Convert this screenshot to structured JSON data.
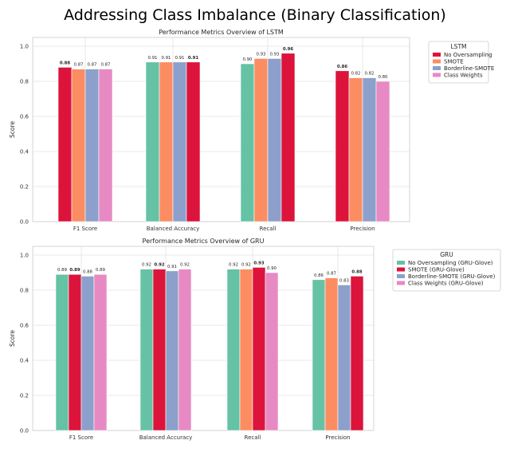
{
  "figure_title": "Addressing Class Imbalance (Binary Classification)",
  "chart_data": [
    {
      "type": "bar",
      "title": "Performance Metrics Overview of LSTM",
      "xlabel": "",
      "ylabel": "Score",
      "ylim": [
        0,
        1.05
      ],
      "yticks": [
        "0.0",
        "0.2",
        "0.4",
        "0.6",
        "0.8",
        "1.0"
      ],
      "grid": true,
      "legend_title": "LSTM",
      "legend_position": "outside-top-right",
      "categories": [
        "F1 Score",
        "Balanced Accuracy",
        "Recall",
        "Precision"
      ],
      "series": [
        {
          "name": "No Oversampling",
          "color": "#dc143c",
          "values": [
            0.88,
            0.91,
            0.9,
            0.86
          ],
          "labels": [
            "0.88",
            "0.91",
            "0.90",
            "0.86"
          ]
        },
        {
          "name": "SMOTE",
          "color": "#fc8d62",
          "values": [
            0.87,
            0.91,
            0.93,
            0.82
          ],
          "labels": [
            "0.87",
            "0.91",
            "0.93",
            "0.82"
          ]
        },
        {
          "name": "Borderline-SMOTE",
          "color": "#8da0cb",
          "values": [
            0.87,
            0.91,
            0.93,
            0.82
          ],
          "labels": [
            "0.87",
            "0.91",
            "0.93",
            "0.82"
          ]
        },
        {
          "name": "Class Weights",
          "color": "#e78ac3",
          "values": [
            0.87,
            0.91,
            0.96,
            0.8
          ],
          "labels": [
            "0.87",
            "0.91",
            "0.96",
            "0.80"
          ]
        }
      ],
      "bar_colors": [
        [
          "#dc143c",
          "#fc8d62",
          "#8da0cb",
          "#e78ac3"
        ],
        [
          "#66c2a5",
          "#fc8d62",
          "#8da0cb",
          "#dc143c"
        ],
        [
          "#66c2a5",
          "#fc8d62",
          "#8da0cb",
          "#dc143c"
        ],
        [
          "#dc143c",
          "#fc8d62",
          "#8da0cb",
          "#e78ac3"
        ]
      ],
      "bold_labels": [
        [
          0
        ],
        [
          3
        ],
        [
          3
        ],
        [
          0
        ]
      ]
    },
    {
      "type": "bar",
      "title": "Performance Metrics Overview of GRU",
      "xlabel": "",
      "ylabel": "Score",
      "ylim": [
        0,
        1.05
      ],
      "yticks": [
        "0.0",
        "0.2",
        "0.4",
        "0.6",
        "0.8",
        "1.0"
      ],
      "grid": true,
      "legend_title": "GRU",
      "legend_position": "outside-top-right",
      "categories": [
        "F1 Score",
        "Balanced Accuracy",
        "Recall",
        "Precision"
      ],
      "series": [
        {
          "name": "No Oversampling (GRU-Glove)",
          "color": "#66c2a5",
          "values": [
            0.89,
            0.92,
            0.92,
            0.86
          ],
          "labels": [
            "0.89",
            "0.92",
            "0.92",
            "0.86"
          ]
        },
        {
          "name": "SMOTE (GRU-Glove)",
          "color": "#dc143c",
          "values": [
            0.89,
            0.92,
            0.92,
            0.87
          ],
          "labels": [
            "0.89",
            "0.92",
            "0.92",
            "0.87"
          ]
        },
        {
          "name": "Borderline-SMOTE (GRU-Glove)",
          "color": "#8da0cb",
          "values": [
            0.88,
            0.91,
            0.93,
            0.83
          ],
          "labels": [
            "0.88",
            "0.91",
            "0.93",
            "0.83"
          ]
        },
        {
          "name": "Class Weights (GRU-Glove)",
          "color": "#e78ac3",
          "values": [
            0.89,
            0.92,
            0.9,
            0.88
          ],
          "labels": [
            "0.89",
            "0.92",
            "0.90",
            "0.88"
          ]
        }
      ],
      "bar_colors": [
        [
          "#66c2a5",
          "#dc143c",
          "#8da0cb",
          "#e78ac3"
        ],
        [
          "#66c2a5",
          "#dc143c",
          "#8da0cb",
          "#e78ac3"
        ],
        [
          "#66c2a5",
          "#fc8d62",
          "#dc143c",
          "#e78ac3"
        ],
        [
          "#66c2a5",
          "#fc8d62",
          "#8da0cb",
          "#dc143c"
        ]
      ],
      "bold_labels": [
        [
          1
        ],
        [
          1
        ],
        [
          2
        ],
        [
          3
        ]
      ]
    }
  ]
}
